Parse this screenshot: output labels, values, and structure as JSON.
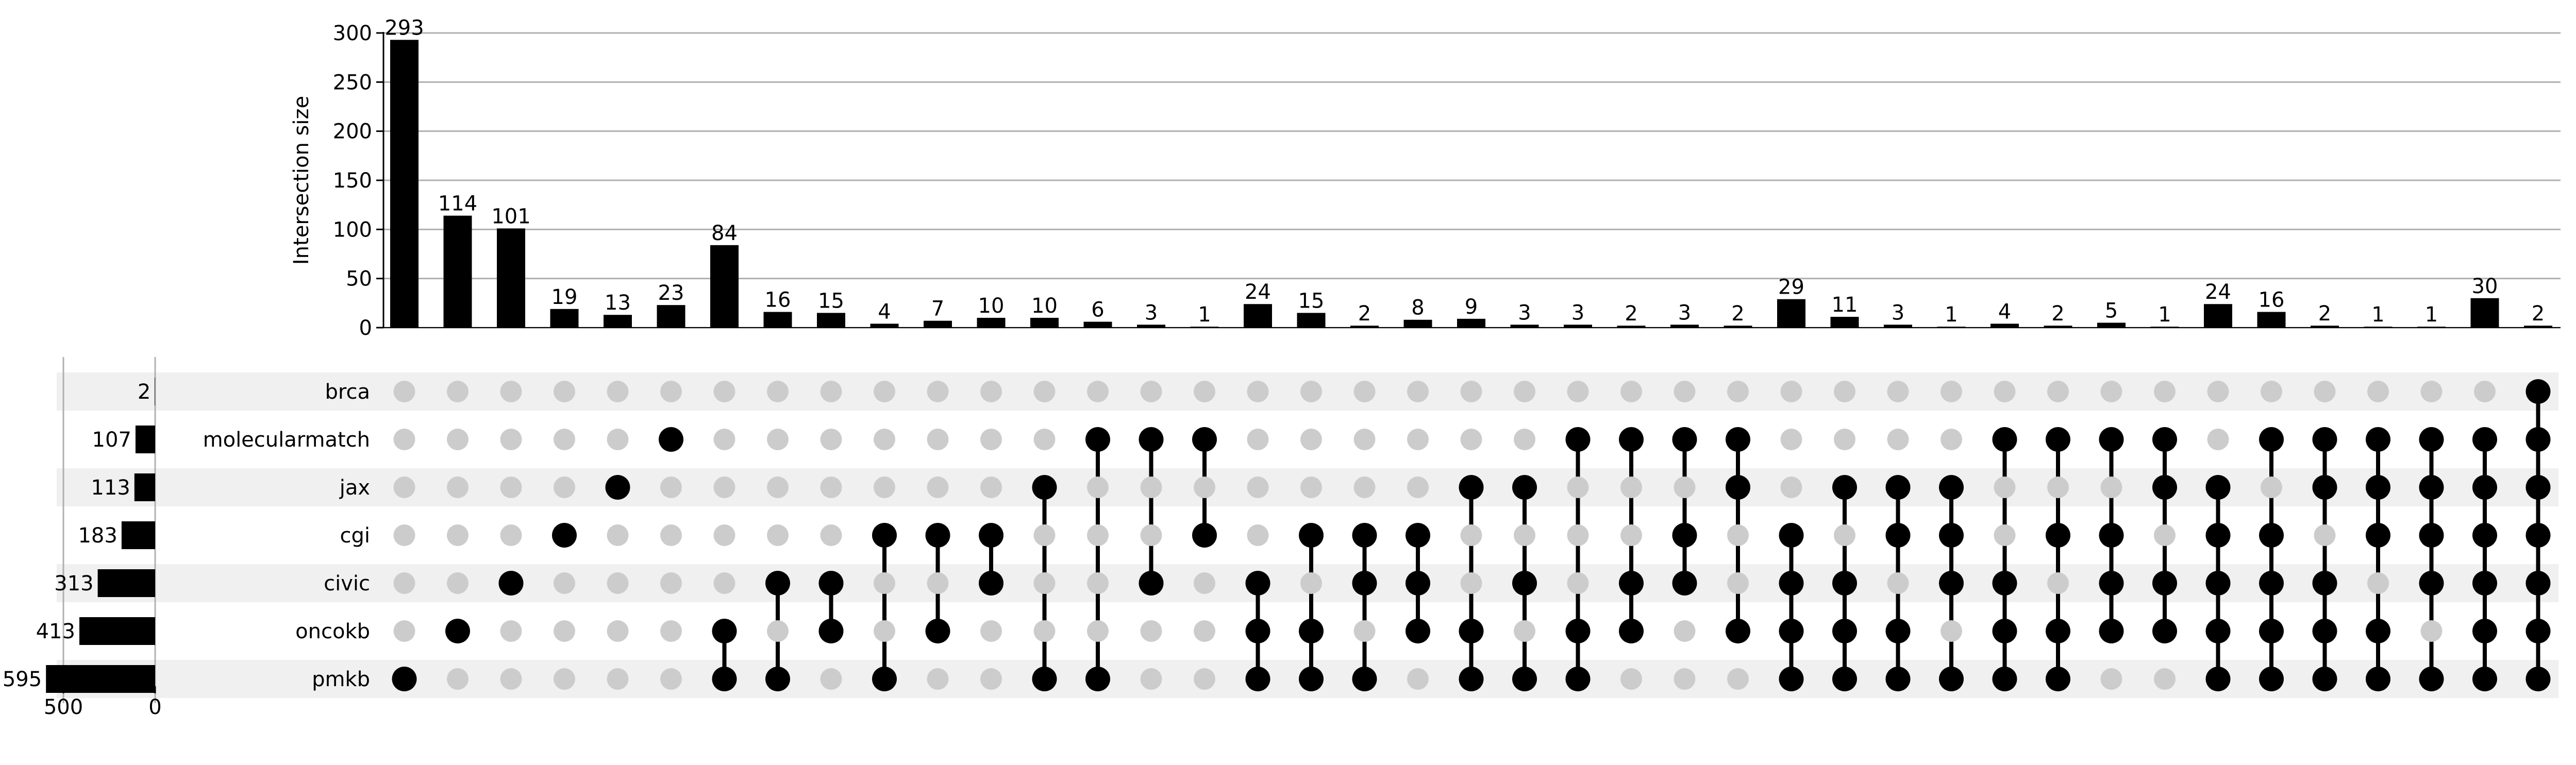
{
  "chart_data": {
    "type": "upset",
    "bar_color": "#000000",
    "dot_inactive_color": "#cccccc",
    "stripe_color": "#f0f0f0",
    "grid_color": "#b0b0b0",
    "intersection_axis": {
      "label": "Intersection size",
      "ylim": [
        0,
        300
      ],
      "ticks": [
        0,
        50,
        100,
        150,
        200,
        250,
        300
      ],
      "grid": true
    },
    "set_size_axis": {
      "ticks": [
        500,
        0
      ],
      "xlim_reversed": [
        0,
        595
      ],
      "grid": true
    },
    "sets": [
      {
        "name": "brca",
        "size": 2
      },
      {
        "name": "molecularmatch",
        "size": 107
      },
      {
        "name": "jax",
        "size": 113
      },
      {
        "name": "cgi",
        "size": 183
      },
      {
        "name": "civic",
        "size": 313
      },
      {
        "name": "oncokb",
        "size": 413
      },
      {
        "name": "pmkb",
        "size": 595
      }
    ],
    "intersections": [
      {
        "members": [
          "pmkb"
        ],
        "size": 293
      },
      {
        "members": [
          "oncokb"
        ],
        "size": 114
      },
      {
        "members": [
          "civic"
        ],
        "size": 101
      },
      {
        "members": [
          "cgi"
        ],
        "size": 19
      },
      {
        "members": [
          "jax"
        ],
        "size": 13
      },
      {
        "members": [
          "molecularmatch"
        ],
        "size": 23
      },
      {
        "members": [
          "oncokb",
          "pmkb"
        ],
        "size": 84
      },
      {
        "members": [
          "civic",
          "pmkb"
        ],
        "size": 16
      },
      {
        "members": [
          "civic",
          "oncokb"
        ],
        "size": 15
      },
      {
        "members": [
          "cgi",
          "pmkb"
        ],
        "size": 4
      },
      {
        "members": [
          "cgi",
          "oncokb"
        ],
        "size": 7
      },
      {
        "members": [
          "cgi",
          "civic"
        ],
        "size": 10
      },
      {
        "members": [
          "jax",
          "pmkb"
        ],
        "size": 10
      },
      {
        "members": [
          "molecularmatch",
          "pmkb"
        ],
        "size": 6
      },
      {
        "members": [
          "molecularmatch",
          "civic"
        ],
        "size": 3
      },
      {
        "members": [
          "molecularmatch",
          "cgi"
        ],
        "size": 1
      },
      {
        "members": [
          "civic",
          "oncokb",
          "pmkb"
        ],
        "size": 24
      },
      {
        "members": [
          "cgi",
          "oncokb",
          "pmkb"
        ],
        "size": 15
      },
      {
        "members": [
          "cgi",
          "civic",
          "pmkb"
        ],
        "size": 2
      },
      {
        "members": [
          "cgi",
          "civic",
          "oncokb"
        ],
        "size": 8
      },
      {
        "members": [
          "jax",
          "oncokb",
          "pmkb"
        ],
        "size": 9
      },
      {
        "members": [
          "jax",
          "civic",
          "pmkb"
        ],
        "size": 3
      },
      {
        "members": [
          "molecularmatch",
          "oncokb",
          "pmkb"
        ],
        "size": 3
      },
      {
        "members": [
          "molecularmatch",
          "civic",
          "oncokb"
        ],
        "size": 2
      },
      {
        "members": [
          "molecularmatch",
          "cgi",
          "civic"
        ],
        "size": 3
      },
      {
        "members": [
          "molecularmatch",
          "jax",
          "oncokb"
        ],
        "size": 2
      },
      {
        "members": [
          "cgi",
          "civic",
          "oncokb",
          "pmkb"
        ],
        "size": 29
      },
      {
        "members": [
          "jax",
          "civic",
          "oncokb",
          "pmkb"
        ],
        "size": 11
      },
      {
        "members": [
          "jax",
          "cgi",
          "oncokb",
          "pmkb"
        ],
        "size": 3
      },
      {
        "members": [
          "jax",
          "cgi",
          "civic",
          "pmkb"
        ],
        "size": 1
      },
      {
        "members": [
          "molecularmatch",
          "civic",
          "oncokb",
          "pmkb"
        ],
        "size": 4
      },
      {
        "members": [
          "molecularmatch",
          "cgi",
          "oncokb",
          "pmkb"
        ],
        "size": 2
      },
      {
        "members": [
          "molecularmatch",
          "cgi",
          "civic",
          "oncokb"
        ],
        "size": 5
      },
      {
        "members": [
          "molecularmatch",
          "jax",
          "civic",
          "oncokb"
        ],
        "size": 1
      },
      {
        "members": [
          "jax",
          "cgi",
          "civic",
          "oncokb",
          "pmkb"
        ],
        "size": 24
      },
      {
        "members": [
          "molecularmatch",
          "cgi",
          "civic",
          "oncokb",
          "pmkb"
        ],
        "size": 16
      },
      {
        "members": [
          "molecularmatch",
          "jax",
          "civic",
          "oncokb",
          "pmkb"
        ],
        "size": 2
      },
      {
        "members": [
          "molecularmatch",
          "jax",
          "cgi",
          "oncokb",
          "pmkb"
        ],
        "size": 1
      },
      {
        "members": [
          "molecularmatch",
          "jax",
          "cgi",
          "civic",
          "pmkb"
        ],
        "size": 1
      },
      {
        "members": [
          "molecularmatch",
          "jax",
          "cgi",
          "civic",
          "oncokb",
          "pmkb"
        ],
        "size": 30
      },
      {
        "members": [
          "brca",
          "molecularmatch",
          "jax",
          "cgi",
          "civic",
          "oncokb",
          "pmkb"
        ],
        "size": 2
      }
    ]
  }
}
